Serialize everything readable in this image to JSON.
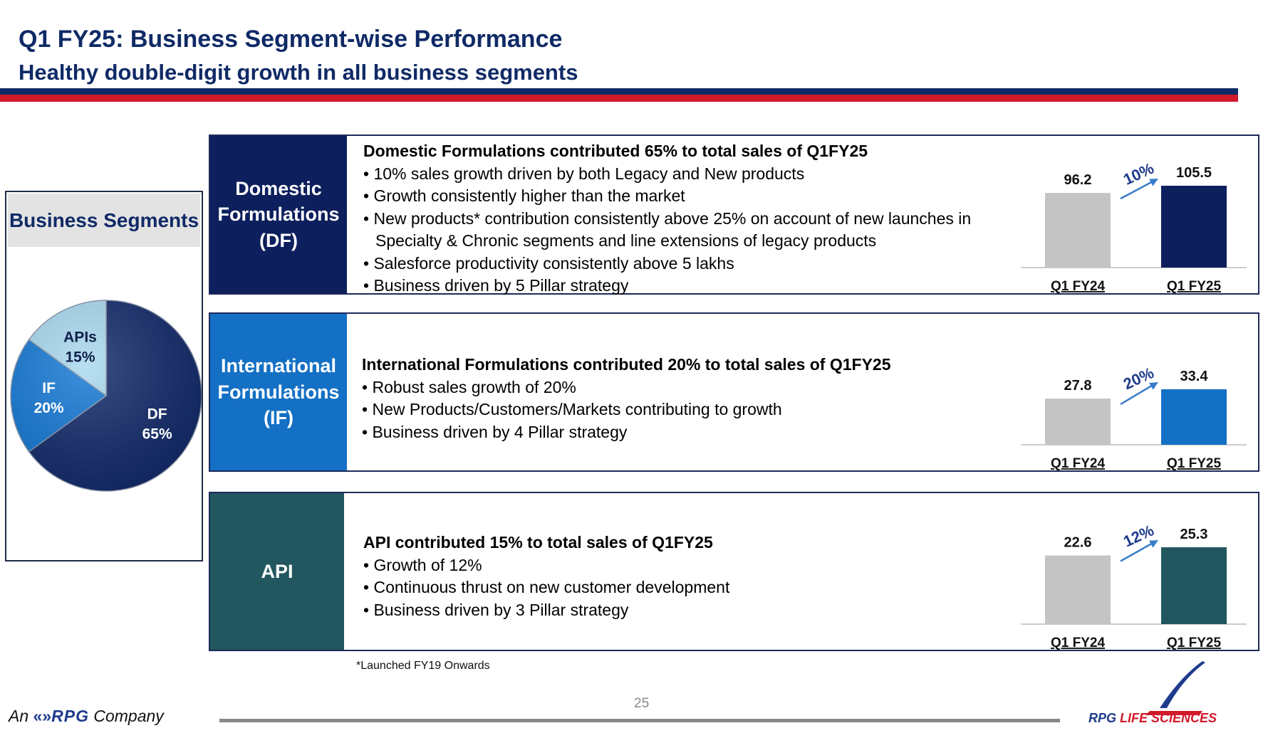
{
  "header": {
    "title": "Q1 FY25: Business Segment-wise Performance",
    "subtitle": "Healthy double-digit growth in all business segments"
  },
  "segments_box": {
    "heading": "Business Segments",
    "pie": [
      {
        "label": "DF",
        "pct": "65%",
        "value": 65,
        "color": "#132a6b"
      },
      {
        "label": "IF",
        "pct": "20%",
        "value": 20,
        "color": "#1478d4"
      },
      {
        "label": "APIs",
        "pct": "15%",
        "value": 15,
        "color": "#a9d8ef"
      }
    ]
  },
  "rows": [
    {
      "label": "Domestic\nFormulations\n(DF)",
      "color": "#0d1f5c",
      "headline": "Domestic Formulations contributed 65% to total sales of Q1FY25",
      "bullets": [
        "10% sales growth driven by both Legacy and New products",
        "Growth consistently higher than the market",
        "New products* contribution  consistently above 25% on account of new launches in Specialty & Chronic segments and line extensions of legacy products",
        "Salesforce productivity consistently above 5 lakhs",
        "Business driven by 5 Pillar strategy"
      ]
    },
    {
      "label": "International\nFormulations\n(IF)",
      "color": "#1470c4",
      "headline": "International Formulations contributed 20% to total sales of Q1FY25",
      "bullets": [
        "Robust sales growth of 20%",
        "New Products/Customers/Markets contributing to growth",
        "Business driven by 4 Pillar strategy"
      ]
    },
    {
      "label": "API",
      "color": "#22575f",
      "headline": "API contributed 15% to total sales of Q1FY25",
      "bullets": [
        "Growth of 12%",
        "Continuous thrust on new customer development",
        "Business driven by 3 Pillar strategy"
      ]
    }
  ],
  "chart_data": [
    {
      "type": "bar",
      "categories": [
        "Q1 FY24",
        "Q1 FY25"
      ],
      "values": [
        96.2,
        105.5
      ],
      "growth_label": "10%",
      "colors": [
        "#c4c4c4",
        "#0d1f5c"
      ]
    },
    {
      "type": "bar",
      "categories": [
        "Q1 FY24",
        "Q1 FY25"
      ],
      "values": [
        27.8,
        33.4
      ],
      "growth_label": "20%",
      "colors": [
        "#c4c4c4",
        "#1470c4"
      ]
    },
    {
      "type": "bar",
      "categories": [
        "Q1 FY24",
        "Q1 FY25"
      ],
      "values": [
        22.6,
        25.3
      ],
      "growth_label": "12%",
      "colors": [
        "#c4c4c4",
        "#22575f"
      ]
    }
  ],
  "footer": {
    "footnote": "*Launched FY19 Onwards",
    "page_number": "25",
    "brand_left_prefix": "An",
    "brand_left_name": "RPG",
    "brand_left_suffix": "Company",
    "brand_right_rpg": "RPG",
    "brand_right_life": "LIFE SCIENCES"
  }
}
